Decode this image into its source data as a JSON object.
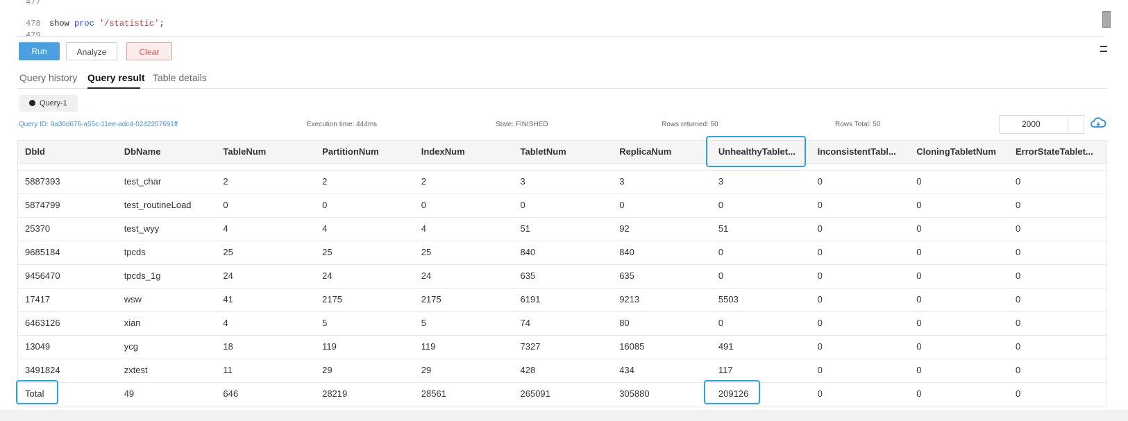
{
  "editor": {
    "lines": [
      {
        "number": "477",
        "code": ""
      },
      {
        "number": "478",
        "code": [
          "show ",
          "proc",
          " '/statistic'",
          ";"
        ]
      },
      {
        "number": "479",
        "code": ""
      }
    ]
  },
  "buttons": [
    "Run",
    "Analyze",
    "Clear"
  ],
  "tabs": {
    "items": [
      "Query history",
      "Query result",
      "Table details"
    ],
    "active": 1
  },
  "query_tag": "Query-1",
  "info": {
    "query_id": "Query ID: 9a30d676-a55c-11ee-adc4-0242207691ff",
    "execution_time": "Execution time: 444ms",
    "state": "State: FINISHED",
    "rows_returned": "Rows returned: 50",
    "rows_total": "Rows Total: 50",
    "limit": "2000"
  },
  "table": {
    "columns": [
      "DbId",
      "DbName",
      "TableNum",
      "PartitionNum",
      "IndexNum",
      "TabletNum",
      "ReplicaNum",
      "UnhealthyTablet...",
      "InconsistentTabl...",
      "CloningTabletNum",
      "ErrorStateTablet..."
    ],
    "rows": [
      [
        "5887393",
        "test_char",
        "2",
        "2",
        "2",
        "3",
        "3",
        "3",
        "0",
        "0",
        "0"
      ],
      [
        "5874799",
        "test_routineLoad",
        "0",
        "0",
        "0",
        "0",
        "0",
        "0",
        "0",
        "0",
        "0"
      ],
      [
        "25370",
        "test_wyy",
        "4",
        "4",
        "4",
        "51",
        "92",
        "51",
        "0",
        "0",
        "0"
      ],
      [
        "9685184",
        "tpcds",
        "25",
        "25",
        "25",
        "840",
        "840",
        "0",
        "0",
        "0",
        "0"
      ],
      [
        "9456470",
        "tpcds_1g",
        "24",
        "24",
        "24",
        "635",
        "635",
        "0",
        "0",
        "0",
        "0"
      ],
      [
        "17417",
        "wsw",
        "41",
        "2175",
        "2175",
        "6191",
        "9213",
        "5503",
        "0",
        "0",
        "0"
      ],
      [
        "6463126",
        "xian",
        "4",
        "5",
        "5",
        "74",
        "80",
        "0",
        "0",
        "0",
        "0"
      ],
      [
        "13049",
        "ycg",
        "18",
        "119",
        "119",
        "7327",
        "16085",
        "491",
        "0",
        "0",
        "0"
      ],
      [
        "3491824",
        "zxtest",
        "11",
        "29",
        "29",
        "428",
        "434",
        "117",
        "0",
        "0",
        "0"
      ],
      [
        "Total",
        "49",
        "646",
        "28219",
        "28561",
        "265091",
        "305880",
        "209126",
        "0",
        "0",
        "0"
      ]
    ]
  }
}
